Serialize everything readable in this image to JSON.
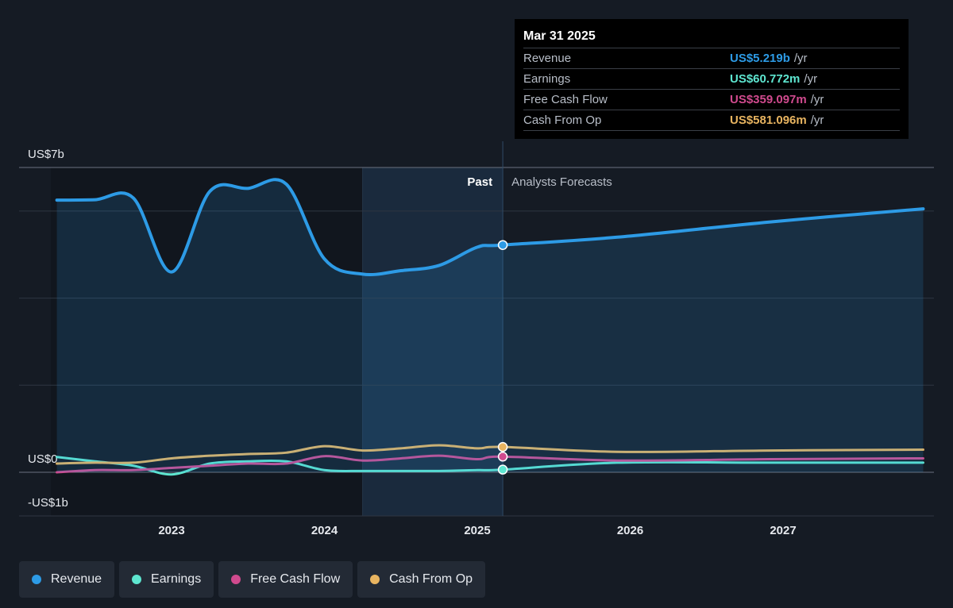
{
  "chart_data": {
    "type": "line",
    "x_axis": {
      "ticks": [
        2023,
        2024,
        2025,
        2026,
        2027
      ],
      "range": [
        "2022-04",
        "2027-12"
      ]
    },
    "y_axis": {
      "labels": [
        "US$7b",
        "US$0",
        "-US$1b"
      ],
      "range": [
        -1,
        7
      ],
      "unit": "US$ billions",
      "grid": true
    },
    "past_label": "Past",
    "forecast_label": "Analysts Forecasts",
    "divider_date": "2025-03-31",
    "series": [
      {
        "name": "Revenue",
        "color": "#2d9be6",
        "area": true,
        "points": [
          [
            "2022-04",
            6.25
          ],
          [
            "2022-07",
            6.26
          ],
          [
            "2022-10",
            6.3
          ],
          [
            "2023-01",
            4.6
          ],
          [
            "2023-04",
            6.45
          ],
          [
            "2023-07",
            6.52
          ],
          [
            "2023-10",
            6.62
          ],
          [
            "2024-01",
            4.9
          ],
          [
            "2024-04",
            4.55
          ],
          [
            "2024-07",
            4.63
          ],
          [
            "2024-10",
            4.75
          ],
          [
            "2025-01",
            5.17
          ],
          [
            "2025-03",
            5.219
          ],
          [
            "2025-12",
            5.4
          ],
          [
            "2026-12",
            5.75
          ],
          [
            "2027-12",
            6.05
          ]
        ]
      },
      {
        "name": "Earnings",
        "color": "#5ee6d0",
        "points": [
          [
            "2022-04",
            0.35
          ],
          [
            "2022-07",
            0.25
          ],
          [
            "2022-10",
            0.15
          ],
          [
            "2023-01",
            -0.05
          ],
          [
            "2023-04",
            0.2
          ],
          [
            "2023-07",
            0.25
          ],
          [
            "2023-10",
            0.25
          ],
          [
            "2024-01",
            0.05
          ],
          [
            "2024-04",
            0.03
          ],
          [
            "2024-07",
            0.03
          ],
          [
            "2024-10",
            0.03
          ],
          [
            "2025-01",
            0.05
          ],
          [
            "2025-03",
            0.061
          ],
          [
            "2025-12",
            0.22
          ],
          [
            "2026-12",
            0.22
          ],
          [
            "2027-12",
            0.22
          ]
        ]
      },
      {
        "name": "Free Cash Flow",
        "color": "#d04a8e",
        "points": [
          [
            "2022-04",
            0.0
          ],
          [
            "2022-07",
            0.05
          ],
          [
            "2022-10",
            0.05
          ],
          [
            "2023-01",
            0.1
          ],
          [
            "2023-04",
            0.15
          ],
          [
            "2023-07",
            0.2
          ],
          [
            "2023-10",
            0.2
          ],
          [
            "2024-01",
            0.37
          ],
          [
            "2024-04",
            0.27
          ],
          [
            "2024-07",
            0.32
          ],
          [
            "2024-10",
            0.38
          ],
          [
            "2025-01",
            0.3
          ],
          [
            "2025-03",
            0.359
          ],
          [
            "2025-12",
            0.27
          ],
          [
            "2026-12",
            0.3
          ],
          [
            "2027-12",
            0.32
          ]
        ]
      },
      {
        "name": "Cash From Op",
        "color": "#e8b460",
        "points": [
          [
            "2022-04",
            0.2
          ],
          [
            "2022-07",
            0.22
          ],
          [
            "2022-10",
            0.22
          ],
          [
            "2023-01",
            0.32
          ],
          [
            "2023-04",
            0.38
          ],
          [
            "2023-07",
            0.42
          ],
          [
            "2023-10",
            0.45
          ],
          [
            "2024-01",
            0.6
          ],
          [
            "2024-04",
            0.5
          ],
          [
            "2024-07",
            0.55
          ],
          [
            "2024-10",
            0.62
          ],
          [
            "2025-01",
            0.55
          ],
          [
            "2025-03",
            0.581
          ],
          [
            "2025-12",
            0.47
          ],
          [
            "2026-12",
            0.5
          ],
          [
            "2027-12",
            0.52
          ]
        ]
      }
    ]
  },
  "tooltip": {
    "date": "Mar 31 2025",
    "rows": [
      {
        "label": "Revenue",
        "value": "US$5.219b",
        "unit": "/yr",
        "color": "#2d9be6"
      },
      {
        "label": "Earnings",
        "value": "US$60.772m",
        "unit": "/yr",
        "color": "#5ee6d0"
      },
      {
        "label": "Free Cash Flow",
        "value": "US$359.097m",
        "unit": "/yr",
        "color": "#d04a8e"
      },
      {
        "label": "Cash From Op",
        "value": "US$581.096m",
        "unit": "/yr",
        "color": "#e8b460"
      }
    ]
  },
  "legend": [
    {
      "label": "Revenue",
      "color": "#2d9be6"
    },
    {
      "label": "Earnings",
      "color": "#5ee6d0"
    },
    {
      "label": "Free Cash Flow",
      "color": "#d04a8e"
    },
    {
      "label": "Cash From Op",
      "color": "#e8b460"
    }
  ]
}
